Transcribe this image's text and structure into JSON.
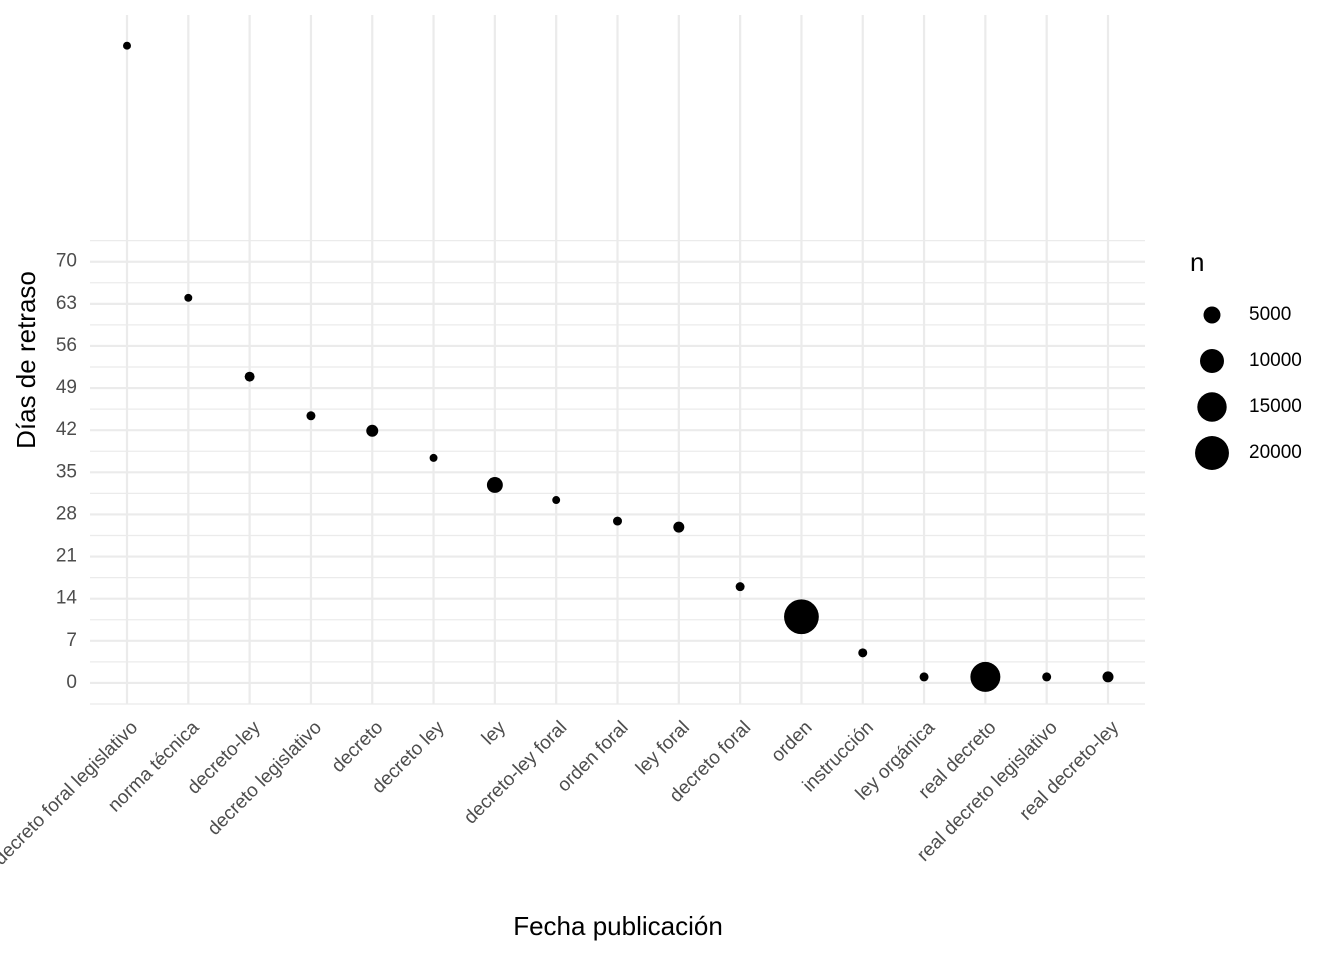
{
  "chart_data": {
    "type": "scatter",
    "x_label": "Fecha publicación",
    "y_label": "Días de retraso",
    "categories": [
      "decreto foral legislativo",
      "norma técnica",
      "decreto-ley",
      "decreto legislativo",
      "decreto",
      "decreto ley",
      "ley",
      "decreto-ley foral",
      "orden foral",
      "ley foral",
      "decreto foral",
      "orden",
      "instrucción",
      "ley orgánica",
      "real decreto",
      "real decreto legislativo",
      "real decreto-ley"
    ],
    "values": [
      105.9,
      64.0,
      50.9,
      44.4,
      41.9,
      37.4,
      32.9,
      30.4,
      26.9,
      25.9,
      16.0,
      11.0,
      5.0,
      1.0,
      1.0,
      1.0,
      1.0
    ],
    "sizes": [
      1100,
      1100,
      1700,
      1400,
      2500,
      1100,
      4400,
      1100,
      1400,
      2100,
      1400,
      21000,
      1400,
      1400,
      15600,
      1400,
      2100
    ],
    "color": "#000000",
    "ylim": [
      -3.5,
      111
    ],
    "yticks": [
      0,
      7,
      14,
      21,
      28,
      35,
      42,
      49,
      56,
      63,
      70
    ],
    "grid": true,
    "legend": {
      "title": "n",
      "sizes": [
        5000,
        10000,
        15000,
        20000
      ]
    }
  }
}
